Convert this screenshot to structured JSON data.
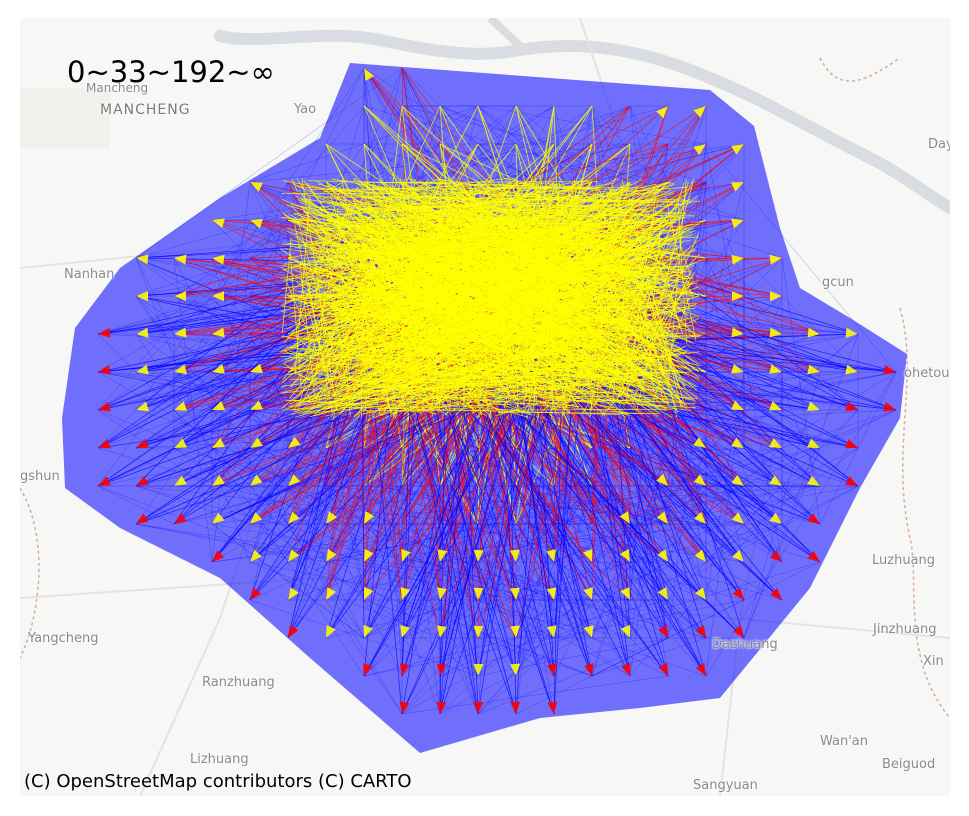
{
  "map": {
    "legend": "0~33~192~∞",
    "attribution": "(C) OpenStreetMap contributors (C) CARTO",
    "basemap": "CARTO light",
    "colors": {
      "low": "#0000ff",
      "mid": "#ff0000",
      "high": "#ffff00",
      "water": "#dadde0",
      "background": "#f7f7f5",
      "boundary": "#d9a6a6"
    },
    "places": [
      {
        "id": "mancheng-small",
        "label": "Mancheng"
      },
      {
        "id": "mancheng",
        "label": "MANCHENG"
      },
      {
        "id": "yao",
        "label": "Yao"
      },
      {
        "id": "day",
        "label": "Day"
      },
      {
        "id": "nanhan",
        "label": "Nanhan"
      },
      {
        "id": "gcun",
        "label": "gcun"
      },
      {
        "id": "ohetou",
        "label": "ohetou"
      },
      {
        "id": "gshun",
        "label": "gshun"
      },
      {
        "id": "luzhuang",
        "label": "Luzhuang"
      },
      {
        "id": "yangcheng",
        "label": "Yangcheng"
      },
      {
        "id": "jinzhuang",
        "label": "Jinzhuang"
      },
      {
        "id": "xin",
        "label": "Xin"
      },
      {
        "id": "dazhuang",
        "label": "Dazhuang"
      },
      {
        "id": "ranzhuang",
        "label": "Ranzhuang"
      },
      {
        "id": "wanan",
        "label": "Wan'an"
      },
      {
        "id": "lizhuang",
        "label": "Lizhuang"
      },
      {
        "id": "beiguod",
        "label": "Beiguod"
      },
      {
        "id": "sangyuan",
        "label": "Sangyuan"
      }
    ]
  }
}
